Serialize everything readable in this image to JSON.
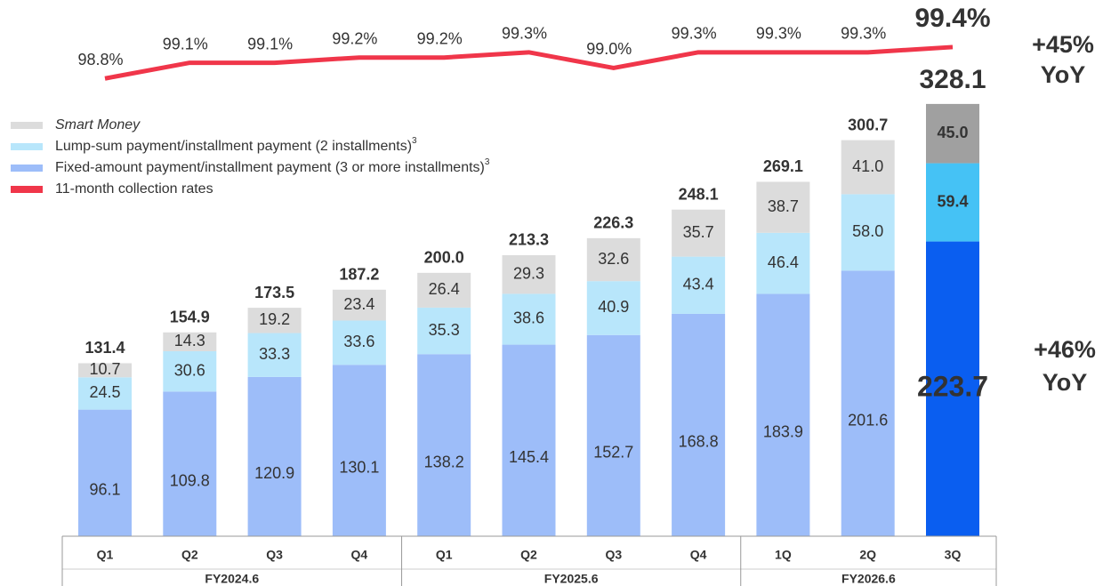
{
  "chart_data": {
    "type": "stacked_bar_line",
    "groups": [
      {
        "label": "FY2024.6",
        "categories": [
          "Q1",
          "Q2",
          "Q3",
          "Q4"
        ]
      },
      {
        "label": "FY2025.6",
        "categories": [
          "Q1",
          "Q2",
          "Q3",
          "Q4"
        ]
      },
      {
        "label": "FY2026.6",
        "categories": [
          "1Q",
          "2Q",
          "3Q"
        ]
      }
    ],
    "ylim": [
      0,
      407
    ],
    "series": [
      {
        "name": "Fixed-amount payment/installment payment (3 or more installments)",
        "note": "3",
        "color": "#9dbdf9",
        "colors": [
          "#9dbdf9",
          "#9dbdf9",
          "#9dbdf9",
          "#9dbdf9",
          "#9dbdf9",
          "#9dbdf9",
          "#9dbdf9",
          "#9dbdf9",
          "#9dbdf9",
          "#9dbdf9",
          "#0a5ef0"
        ],
        "values": [
          96.1,
          109.8,
          120.9,
          130.1,
          138.2,
          145.4,
          152.7,
          168.8,
          183.9,
          201.6,
          223.7
        ],
        "value_labels": [
          "96.1",
          "109.8",
          "120.9",
          "130.1",
          "138.2",
          "145.4",
          "152.7",
          "168.8",
          "183.9",
          "201.6",
          "223.7"
        ]
      },
      {
        "name": "Lump-sum payment/installment payment (2 installments)",
        "note": "3",
        "color": "#b8e6fb",
        "colors": [
          "#b8e6fb",
          "#b8e6fb",
          "#b8e6fb",
          "#b8e6fb",
          "#b8e6fb",
          "#b8e6fb",
          "#b8e6fb",
          "#b8e6fb",
          "#b8e6fb",
          "#b8e6fb",
          "#45c2f5"
        ],
        "values": [
          24.5,
          30.6,
          33.3,
          33.6,
          35.3,
          38.6,
          40.9,
          43.4,
          46.4,
          58.0,
          59.4
        ],
        "value_labels": [
          "24.5",
          "30.6",
          "33.3",
          "33.6",
          "35.3",
          "38.6",
          "40.9",
          "43.4",
          "46.4",
          "58.0",
          "59.4"
        ]
      },
      {
        "name": "Smart Money",
        "color": "#dcdcdc",
        "colors": [
          "#dcdcdc",
          "#dcdcdc",
          "#dcdcdc",
          "#dcdcdc",
          "#dcdcdc",
          "#dcdcdc",
          "#dcdcdc",
          "#dcdcdc",
          "#dcdcdc",
          "#dcdcdc",
          "#a0a0a0"
        ],
        "values": [
          10.7,
          14.3,
          19.2,
          23.4,
          26.4,
          29.3,
          32.6,
          35.7,
          38.7,
          41.0,
          45.0
        ],
        "value_labels": [
          "10.7",
          "14.3",
          "19.2",
          "23.4",
          "26.4",
          "29.3",
          "32.6",
          "35.7",
          "38.7",
          "41.0",
          "45.0"
        ]
      }
    ],
    "totals": {
      "values": [
        131.4,
        154.9,
        173.5,
        187.2,
        200.0,
        213.3,
        226.3,
        248.1,
        269.1,
        300.7,
        328.1
      ],
      "value_labels": [
        "131.4",
        "154.9",
        "173.5",
        "187.2",
        "200.0",
        "213.3",
        "226.3",
        "248.1",
        "269.1",
        "300.7",
        "328.1"
      ]
    },
    "line": {
      "name": "11-month collection rates",
      "color": "#f0364a",
      "values": [
        98.8,
        99.1,
        99.1,
        99.2,
        99.2,
        99.3,
        99.0,
        99.3,
        99.3,
        99.3,
        99.4
      ],
      "value_labels": [
        "98.8%",
        "99.1%",
        "99.1%",
        "99.2%",
        "99.2%",
        "99.3%",
        "99.0%",
        "99.3%",
        "99.3%",
        "99.3%",
        "99.4%"
      ]
    },
    "y2lim": [
      98.6,
      100.3
    ],
    "annotations": [
      {
        "text": "+45%",
        "color": "#222"
      },
      {
        "text": "YoY",
        "color": "#222"
      },
      {
        "text": "+46%",
        "color": "#1a2a8a"
      },
      {
        "text": "YoY",
        "color": "#1a2a8a"
      }
    ]
  }
}
